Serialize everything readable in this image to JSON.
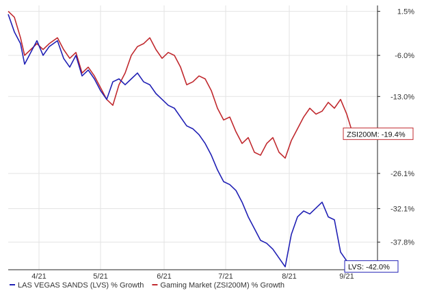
{
  "chart_data": {
    "type": "line",
    "title": "",
    "xlabel": "",
    "ylabel": "",
    "x_tick_labels": [
      "4/21",
      "5/21",
      "6/21",
      "7/21",
      "8/21",
      "9/21"
    ],
    "y_ticks": [
      1.5,
      -6.0,
      -13.0,
      -26.1,
      -32.1,
      -37.8
    ],
    "y_tick_labels": [
      "1.5%",
      "-6.0%",
      "-13.0%",
      "-26.1%",
      "-32.1%",
      "-37.8%"
    ],
    "ylim": [
      -42.5,
      2.5
    ],
    "xlim": [
      0,
      180
    ],
    "grid": true,
    "legend_position": "bottom-left",
    "series": [
      {
        "name": "LAS VEGAS SANDS (LVS) % Growth",
        "color": "#1f1fb4",
        "end_label": "LVS: -42.0%",
        "x": [
          0,
          3,
          6,
          8,
          11,
          14,
          17,
          20,
          24,
          27,
          30,
          33,
          36,
          39,
          42,
          45,
          48,
          51,
          54,
          57,
          60,
          63,
          66,
          69,
          72,
          75,
          78,
          81,
          84,
          87,
          90,
          93,
          96,
          99,
          102,
          105,
          108,
          111,
          114,
          117,
          120,
          123,
          126,
          129,
          132,
          135,
          138,
          141,
          144,
          147,
          150,
          153,
          156,
          159,
          162,
          165,
          168,
          171,
          174,
          177,
          180
        ],
        "values": [
          1.0,
          -2.0,
          -4.0,
          -7.5,
          -5.5,
          -3.5,
          -6.0,
          -4.5,
          -3.5,
          -6.5,
          -8.0,
          -6.0,
          -9.5,
          -8.5,
          -10.0,
          -12.0,
          -13.5,
          -10.5,
          -10.0,
          -11.0,
          -10.0,
          -9.0,
          -10.5,
          -11.0,
          -12.5,
          -13.5,
          -14.5,
          -15.0,
          -16.5,
          -18.0,
          -18.5,
          -19.5,
          -21.0,
          -23.0,
          -25.5,
          -27.5,
          -28.0,
          -29.0,
          -31.0,
          -33.5,
          -35.5,
          -37.5,
          -38.0,
          -39.0,
          -40.5,
          -42.0,
          -36.5,
          -33.5,
          -32.5,
          -33.0,
          -32.0,
          -31.0,
          -33.5,
          -34.0,
          -39.5,
          -41.0,
          -42.0,
          -42.0,
          -42.0,
          -42.0,
          -42.0
        ]
      },
      {
        "name": "Gaming Market (ZSI200M) % Growth",
        "color": "#c0282d",
        "end_label": "ZSI200M: -19.4%",
        "x": [
          0,
          3,
          6,
          8,
          11,
          14,
          17,
          20,
          24,
          27,
          30,
          33,
          36,
          39,
          42,
          45,
          48,
          51,
          54,
          57,
          60,
          63,
          66,
          69,
          72,
          75,
          78,
          81,
          84,
          87,
          90,
          93,
          96,
          99,
          102,
          105,
          108,
          111,
          114,
          117,
          120,
          123,
          126,
          129,
          132,
          135,
          138,
          141,
          144,
          147,
          150,
          153,
          156,
          159,
          162,
          165,
          168,
          171,
          174,
          177,
          180
        ],
        "values": [
          1.5,
          0.5,
          -3.0,
          -6.0,
          -5.0,
          -4.0,
          -5.0,
          -4.0,
          -3.0,
          -5.0,
          -6.5,
          -5.5,
          -9.0,
          -8.0,
          -9.5,
          -11.5,
          -13.5,
          -14.5,
          -11.0,
          -9.0,
          -6.0,
          -4.5,
          -4.0,
          -3.0,
          -5.0,
          -6.5,
          -5.5,
          -6.0,
          -8.0,
          -11.0,
          -10.5,
          -9.5,
          -10.0,
          -12.0,
          -15.0,
          -17.0,
          -16.5,
          -19.0,
          -21.0,
          -20.0,
          -22.5,
          -23.0,
          -21.0,
          -20.0,
          -22.5,
          -23.5,
          -20.5,
          -18.5,
          -16.5,
          -15.0,
          -16.0,
          -15.5,
          -14.0,
          -15.0,
          -13.5,
          -16.0,
          -19.4,
          -19.4,
          -19.4,
          -19.4,
          -19.4
        ]
      }
    ]
  }
}
